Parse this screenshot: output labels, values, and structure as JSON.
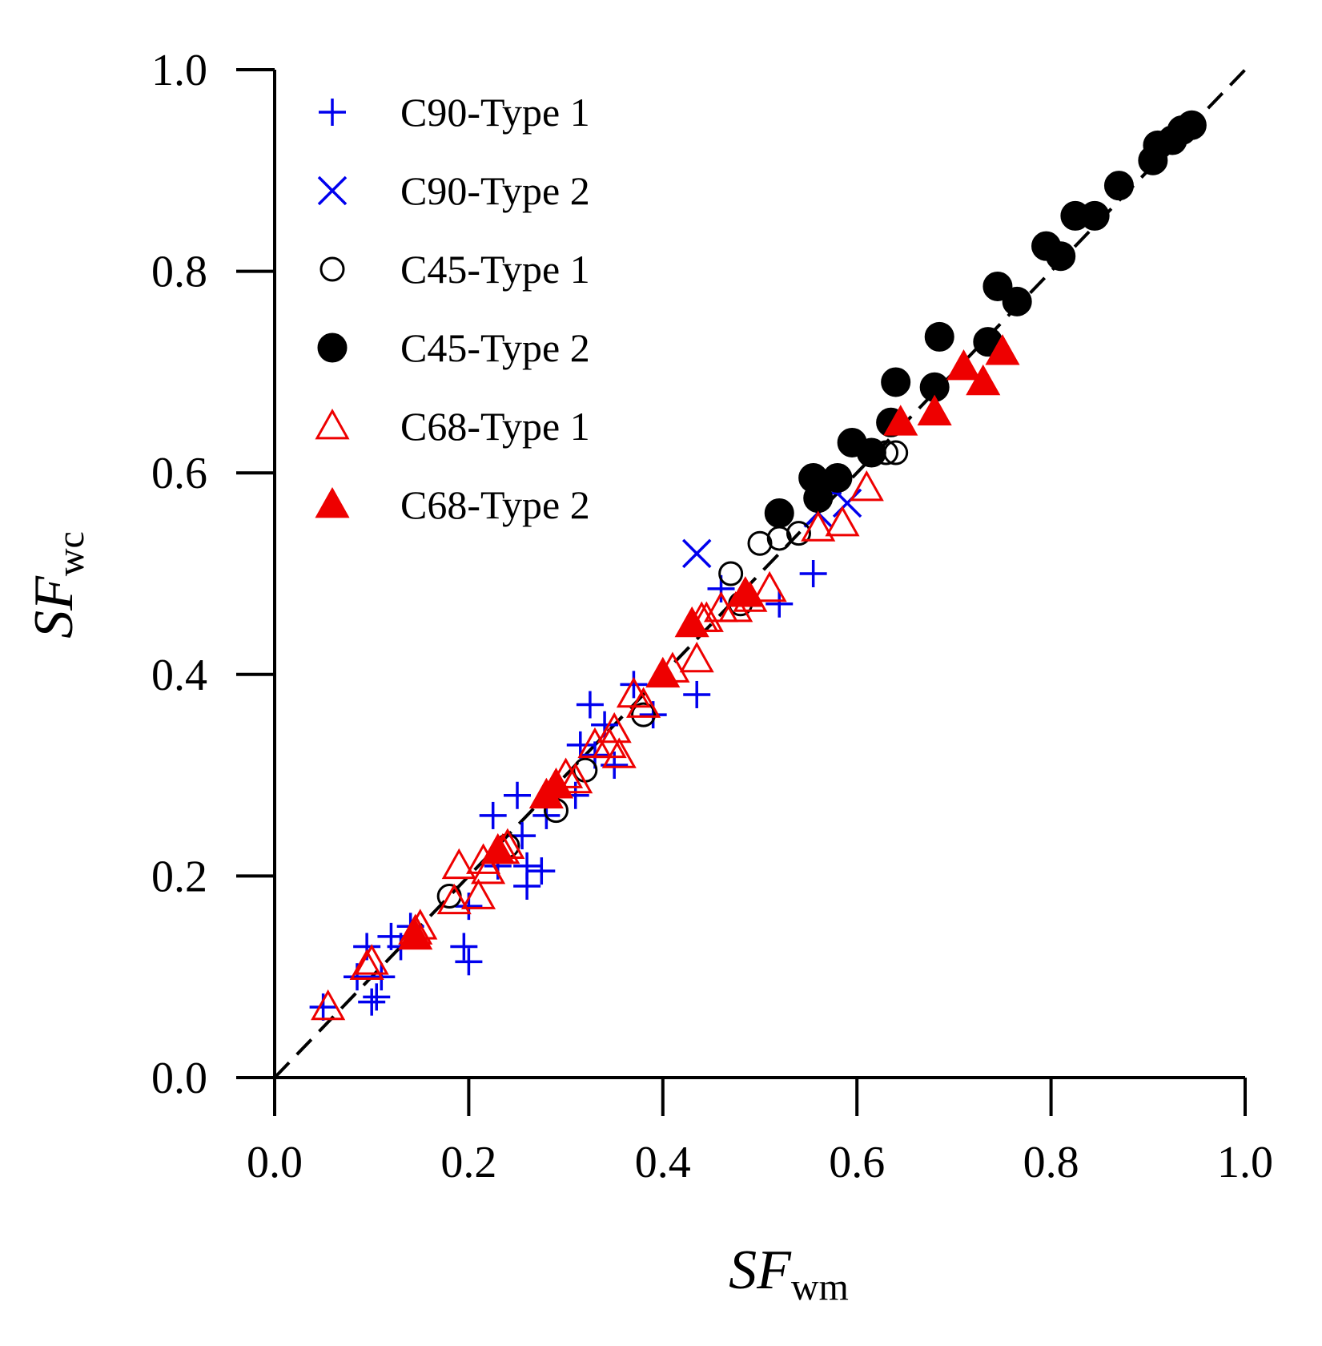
{
  "chart_data": {
    "type": "scatter",
    "title": "",
    "xlabel": {
      "main": "SF",
      "sub": "wm"
    },
    "ylabel": {
      "main": "SF",
      "sub": "wc"
    },
    "xlim": [
      0.0,
      1.0
    ],
    "ylim": [
      0.0,
      1.0
    ],
    "xticks": [
      "0.0",
      "0.2",
      "0.4",
      "0.6",
      "0.8",
      "1.0"
    ],
    "yticks": [
      "0.0",
      "0.2",
      "0.4",
      "0.6",
      "0.8",
      "1.0"
    ],
    "xtick_values": [
      0.0,
      0.2,
      0.4,
      0.6,
      0.8,
      1.0
    ],
    "ytick_values": [
      0.0,
      0.2,
      0.4,
      0.6,
      0.8,
      1.0
    ],
    "grid": false,
    "legend_position": "top-left",
    "reference_line": {
      "style": "dashed",
      "from": [
        0.0,
        0.0
      ],
      "to": [
        1.0,
        1.0
      ]
    },
    "colors": {
      "blue": "#0000ee",
      "black": "#000000",
      "red": "#ee0000"
    },
    "series": [
      {
        "name": "C90-Type 1",
        "marker": "plus",
        "color": "#0000ee",
        "filled": false,
        "points": [
          [
            0.05,
            0.07
          ],
          [
            0.085,
            0.1
          ],
          [
            0.095,
            0.13
          ],
          [
            0.1,
            0.075
          ],
          [
            0.105,
            0.08
          ],
          [
            0.11,
            0.1
          ],
          [
            0.12,
            0.14
          ],
          [
            0.13,
            0.13
          ],
          [
            0.14,
            0.15
          ],
          [
            0.195,
            0.13
          ],
          [
            0.2,
            0.115
          ],
          [
            0.2,
            0.17
          ],
          [
            0.225,
            0.26
          ],
          [
            0.23,
            0.21
          ],
          [
            0.25,
            0.28
          ],
          [
            0.255,
            0.24
          ],
          [
            0.26,
            0.19
          ],
          [
            0.26,
            0.21
          ],
          [
            0.275,
            0.205
          ],
          [
            0.28,
            0.26
          ],
          [
            0.31,
            0.28
          ],
          [
            0.315,
            0.33
          ],
          [
            0.325,
            0.37
          ],
          [
            0.33,
            0.32
          ],
          [
            0.34,
            0.35
          ],
          [
            0.35,
            0.31
          ],
          [
            0.37,
            0.39
          ],
          [
            0.39,
            0.36
          ],
          [
            0.435,
            0.38
          ],
          [
            0.46,
            0.485
          ],
          [
            0.52,
            0.47
          ],
          [
            0.555,
            0.5
          ],
          [
            0.57,
            0.58
          ]
        ]
      },
      {
        "name": "C90-Type 2",
        "marker": "x",
        "color": "#0000ee",
        "filled": false,
        "points": [
          [
            0.435,
            0.52
          ],
          [
            0.56,
            0.56
          ],
          [
            0.59,
            0.57
          ]
        ]
      },
      {
        "name": "C45-Type 1",
        "marker": "circle",
        "color": "#000000",
        "filled": false,
        "points": [
          [
            0.18,
            0.18
          ],
          [
            0.24,
            0.23
          ],
          [
            0.29,
            0.265
          ],
          [
            0.32,
            0.305
          ],
          [
            0.38,
            0.36
          ],
          [
            0.47,
            0.5
          ],
          [
            0.48,
            0.47
          ],
          [
            0.5,
            0.53
          ],
          [
            0.52,
            0.535
          ],
          [
            0.54,
            0.54
          ],
          [
            0.63,
            0.62
          ],
          [
            0.64,
            0.62
          ]
        ]
      },
      {
        "name": "C45-Type 2",
        "marker": "circle",
        "color": "#000000",
        "filled": true,
        "points": [
          [
            0.52,
            0.56
          ],
          [
            0.555,
            0.595
          ],
          [
            0.56,
            0.575
          ],
          [
            0.58,
            0.595
          ],
          [
            0.595,
            0.63
          ],
          [
            0.615,
            0.62
          ],
          [
            0.635,
            0.65
          ],
          [
            0.64,
            0.69
          ],
          [
            0.68,
            0.685
          ],
          [
            0.685,
            0.735
          ],
          [
            0.735,
            0.73
          ],
          [
            0.745,
            0.785
          ],
          [
            0.765,
            0.77
          ],
          [
            0.795,
            0.825
          ],
          [
            0.81,
            0.815
          ],
          [
            0.825,
            0.855
          ],
          [
            0.845,
            0.855
          ],
          [
            0.87,
            0.885
          ],
          [
            0.905,
            0.91
          ],
          [
            0.91,
            0.925
          ],
          [
            0.925,
            0.93
          ],
          [
            0.935,
            0.94
          ],
          [
            0.945,
            0.945
          ]
        ]
      },
      {
        "name": "C68-Type 1",
        "marker": "triangle",
        "color": "#ee0000",
        "filled": false,
        "points": [
          [
            0.055,
            0.07
          ],
          [
            0.095,
            0.11
          ],
          [
            0.1,
            0.115
          ],
          [
            0.145,
            0.145
          ],
          [
            0.15,
            0.15
          ],
          [
            0.185,
            0.175
          ],
          [
            0.19,
            0.21
          ],
          [
            0.21,
            0.18
          ],
          [
            0.215,
            0.215
          ],
          [
            0.22,
            0.205
          ],
          [
            0.235,
            0.225
          ],
          [
            0.24,
            0.23
          ],
          [
            0.29,
            0.29
          ],
          [
            0.3,
            0.3
          ],
          [
            0.31,
            0.295
          ],
          [
            0.33,
            0.33
          ],
          [
            0.345,
            0.33
          ],
          [
            0.35,
            0.345
          ],
          [
            0.355,
            0.32
          ],
          [
            0.37,
            0.38
          ],
          [
            0.38,
            0.37
          ],
          [
            0.41,
            0.405
          ],
          [
            0.435,
            0.415
          ],
          [
            0.44,
            0.455
          ],
          [
            0.445,
            0.455
          ],
          [
            0.46,
            0.465
          ],
          [
            0.475,
            0.465
          ],
          [
            0.49,
            0.475
          ],
          [
            0.51,
            0.485
          ],
          [
            0.56,
            0.545
          ],
          [
            0.585,
            0.55
          ],
          [
            0.61,
            0.585
          ]
        ]
      },
      {
        "name": "C68-Type 2",
        "marker": "triangle",
        "color": "#ee0000",
        "filled": true,
        "points": [
          [
            0.145,
            0.14
          ],
          [
            0.23,
            0.225
          ],
          [
            0.28,
            0.28
          ],
          [
            0.29,
            0.29
          ],
          [
            0.4,
            0.4
          ],
          [
            0.43,
            0.45
          ],
          [
            0.485,
            0.48
          ],
          [
            0.645,
            0.65
          ],
          [
            0.68,
            0.66
          ],
          [
            0.71,
            0.705
          ],
          [
            0.73,
            0.69
          ],
          [
            0.75,
            0.72
          ]
        ]
      }
    ]
  }
}
